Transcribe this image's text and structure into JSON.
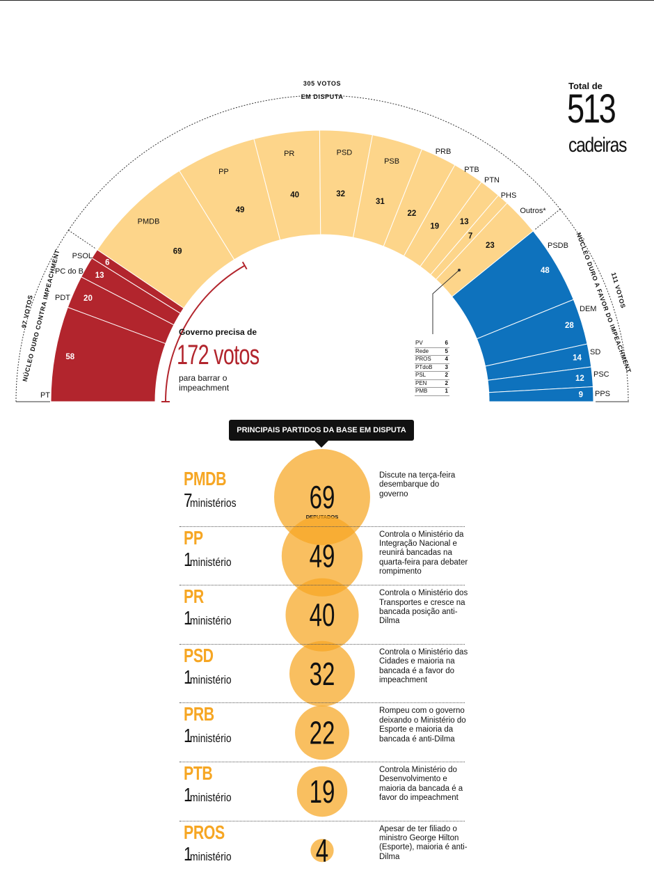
{
  "chart_data": {
    "type": "hemicycle",
    "total": {
      "label": "Total de",
      "value": "513",
      "unit": "cadeiras"
    },
    "groups": {
      "contra": {
        "votes_label": "97 VOTOS",
        "label": "NÚCLEO DURO CONTRA IMPEACHMENT",
        "color": "#b2252d",
        "total": 97
      },
      "disputa": {
        "votes_label": "305 VOTOS",
        "label": "EM DISPUTA",
        "color": "#fdd58a",
        "total": 305
      },
      "favor": {
        "votes_label": "111 VOTOS",
        "label": "NÚCLEO DURO A FAVOR DO IMPEACHMENT",
        "color": "#0e72bd",
        "total": 111
      }
    },
    "segments": [
      {
        "party": "PT",
        "value": 58,
        "group": "contra"
      },
      {
        "party": "PDT",
        "value": 20,
        "group": "contra"
      },
      {
        "party": "PC do B",
        "value": 13,
        "group": "contra"
      },
      {
        "party": "PSOL",
        "value": 6,
        "group": "contra"
      },
      {
        "party": "PMDB",
        "value": 69,
        "group": "disputa"
      },
      {
        "party": "PP",
        "value": 49,
        "group": "disputa"
      },
      {
        "party": "PR",
        "value": 40,
        "group": "disputa"
      },
      {
        "party": "PSD",
        "value": 32,
        "group": "disputa"
      },
      {
        "party": "PSB",
        "value": 31,
        "group": "disputa"
      },
      {
        "party": "PRB",
        "value": 22,
        "group": "disputa"
      },
      {
        "party": "PTB",
        "value": 19,
        "group": "disputa"
      },
      {
        "party": "PTN",
        "value": 13,
        "group": "disputa"
      },
      {
        "party": "PHS",
        "value": 7,
        "group": "disputa"
      },
      {
        "party": "Outros*",
        "value": 23,
        "group": "disputa"
      },
      {
        "party": "PSDB",
        "value": 48,
        "group": "favor"
      },
      {
        "party": "DEM",
        "value": 28,
        "group": "favor"
      },
      {
        "party": "SD",
        "value": 14,
        "group": "favor"
      },
      {
        "party": "PSC",
        "value": 12,
        "group": "favor"
      },
      {
        "party": "PPS",
        "value": 9,
        "group": "favor"
      }
    ],
    "others_breakdown": [
      {
        "party": "PV",
        "value": "6"
      },
      {
        "party": "Rede",
        "value": "5"
      },
      {
        "party": "PROS",
        "value": "4"
      },
      {
        "party": "PTdoB",
        "value": "3"
      },
      {
        "party": "PSL",
        "value": "2"
      },
      {
        "party": "PEN",
        "value": "2"
      },
      {
        "party": "PMB",
        "value": "1"
      }
    ],
    "government_threshold": {
      "label": "Governo precisa de",
      "value": "172 votos",
      "sub": "para barrar o impeachment",
      "votes": 172
    }
  },
  "banner": "PRINCIPAIS PARTIDOS DA BASE EM DISPUTA",
  "bubble_color": "#f6a623",
  "bubble_unit": "DEPUTADOS",
  "parties": [
    {
      "name": "PMDB",
      "min_count": "7",
      "min_word": "ministérios",
      "deputies": "69",
      "desc": "Discute na terça-feira desembarque do governo"
    },
    {
      "name": "PP",
      "min_count": "1",
      "min_word": "ministério",
      "deputies": "49",
      "desc": "Controla o Ministério da Integração Nacional e reunirá bancadas na quarta-feira para debater rompimento"
    },
    {
      "name": "PR",
      "min_count": "1",
      "min_word": "ministério",
      "deputies": "40",
      "desc": "Controla o Ministério dos Transportes e cresce na bancada posição anti-Dilma"
    },
    {
      "name": "PSD",
      "min_count": "1",
      "min_word": "ministério",
      "deputies": "32",
      "desc": "Controla o Ministério das Cidades e maioria na bancada é a favor do impeachment"
    },
    {
      "name": "PRB",
      "min_count": "1",
      "min_word": "ministério",
      "deputies": "22",
      "desc": "Rompeu com o governo deixando o Ministério do Esporte e maioria da bancada é anti-Dilma"
    },
    {
      "name": "PTB",
      "min_count": "1",
      "min_word": "ministério",
      "deputies": "19",
      "desc": "Controla Ministério do Desenvolvimento e maioria da bancada é a favor do impeachment"
    },
    {
      "name": "PROS",
      "min_count": "1",
      "min_word": "ministério",
      "deputies": "4",
      "desc": "Apesar de ter filiado o ministro George Hilton (Esporte), maioria é anti-Dilma"
    }
  ]
}
